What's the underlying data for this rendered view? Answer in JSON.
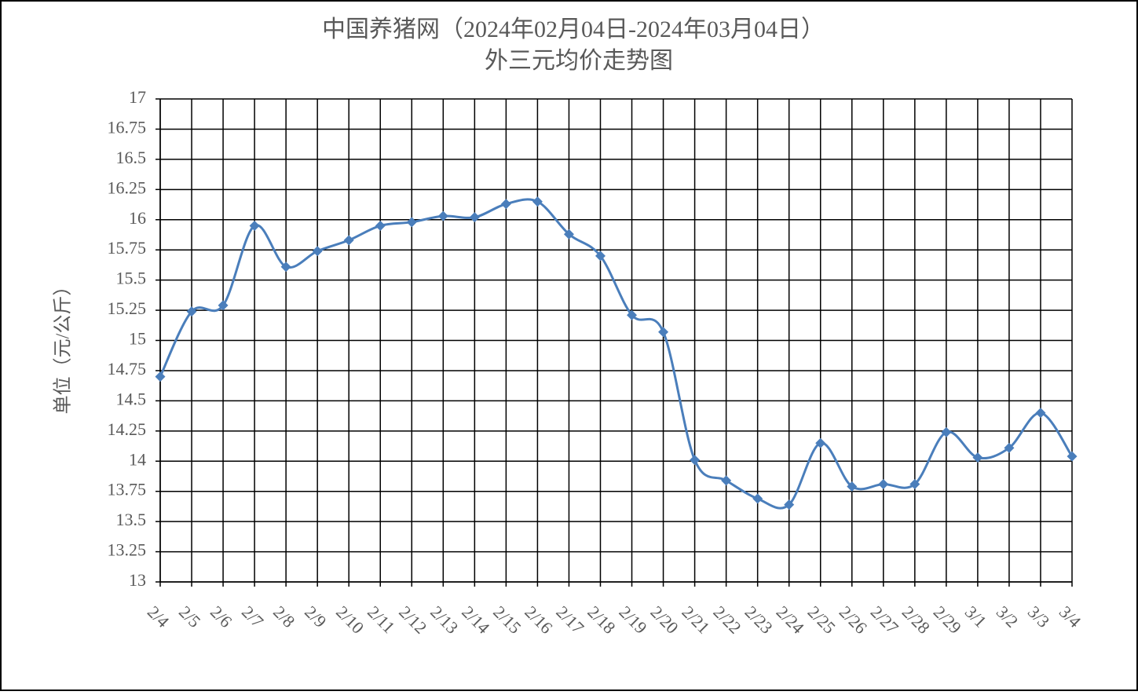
{
  "chart_data": {
    "type": "line",
    "title": "中国养猪网（2024年02月04日-2024年03月04日）",
    "subtitle": "外三元均价走势图",
    "y_label": "单位（元/公斤）",
    "categories": [
      "2/4",
      "2/5",
      "2/6",
      "2/7",
      "2/8",
      "2/9",
      "2/10",
      "2/11",
      "2/12",
      "2/13",
      "2/14",
      "2/15",
      "2/16",
      "2/17",
      "2/18",
      "2/19",
      "2/20",
      "2/21",
      "2/22",
      "2/23",
      "2/24",
      "2/25",
      "2/26",
      "2/27",
      "2/28",
      "2/29",
      "3/1",
      "3/2",
      "3/3",
      "3/4"
    ],
    "series": [
      {
        "name": "外三元",
        "color": "#4a7ebb",
        "values": [
          14.7,
          15.24,
          15.29,
          15.95,
          15.61,
          15.74,
          15.83,
          15.95,
          15.98,
          16.03,
          16.02,
          16.13,
          16.15,
          15.88,
          15.7,
          15.21,
          15.07,
          14.01,
          13.84,
          13.69,
          13.64,
          14.15,
          13.79,
          13.81,
          13.81,
          14.24,
          14.03,
          14.11,
          14.4,
          14.04
        ]
      }
    ],
    "ylim": [
      13,
      17
    ],
    "yticks": [
      13,
      13.25,
      13.5,
      13.75,
      14,
      14.25,
      14.5,
      14.75,
      15,
      15.25,
      15.5,
      15.75,
      16,
      16.25,
      16.5,
      16.75,
      17
    ],
    "grid": true,
    "smooth": true
  }
}
